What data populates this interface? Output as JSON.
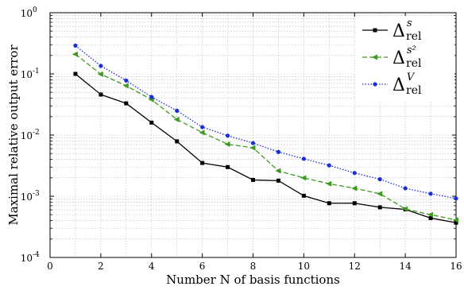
{
  "chart_data": {
    "type": "line",
    "title": "",
    "xlabel": "Number N of basis functions",
    "ylabel": "Maximal relative output error",
    "xlim": [
      0,
      16
    ],
    "ylim": [
      0.0001,
      1
    ],
    "yscale": "log",
    "grid": true,
    "legend_position": "top-right",
    "x_ticks": [
      0,
      2,
      4,
      6,
      8,
      10,
      12,
      14,
      16
    ],
    "y_ticks": [
      {
        "value": 0.0001,
        "base": "10",
        "exp": "-4"
      },
      {
        "value": 0.001,
        "base": "10",
        "exp": "-3"
      },
      {
        "value": 0.01,
        "base": "10",
        "exp": "-2"
      },
      {
        "value": 0.1,
        "base": "10",
        "exp": "-1"
      },
      {
        "value": 1,
        "base": "10",
        "exp": "0"
      }
    ],
    "x": [
      1,
      2,
      3,
      4,
      5,
      6,
      7,
      8,
      9,
      10,
      11,
      12,
      13,
      14,
      15,
      16
    ],
    "series": [
      {
        "name": "Δ^s_rel",
        "legend_sup": "s",
        "legend_sub": "rel",
        "color": "#000000",
        "line_style": "solid",
        "marker": "square",
        "values": [
          0.1,
          0.046,
          0.033,
          0.016,
          0.0079,
          0.0035,
          0.003,
          0.00185,
          0.0018,
          0.00102,
          0.00077,
          0.00077,
          0.00066,
          0.00061,
          0.00044,
          0.00037
        ]
      },
      {
        "name": "Δ^{s²}_rel",
        "legend_sup": "s²",
        "legend_sub": "rel",
        "color": "#3c9a1f",
        "line_style": "dashed",
        "marker": "triangle-left",
        "values": [
          0.21,
          0.099,
          0.064,
          0.038,
          0.018,
          0.011,
          0.0071,
          0.0062,
          0.0026,
          0.002,
          0.0016,
          0.00135,
          0.0011,
          0.00062,
          0.0005,
          0.00041
        ]
      },
      {
        "name": "Δ^V_rel",
        "legend_sup": "V",
        "legend_sub": "rel",
        "color": "#1a2ed8",
        "line_style": "dotted",
        "marker": "dot",
        "values": [
          0.29,
          0.135,
          0.078,
          0.042,
          0.025,
          0.0135,
          0.0098,
          0.0074,
          0.0053,
          0.0041,
          0.0032,
          0.0024,
          0.0019,
          0.00135,
          0.0011,
          0.00092
        ]
      }
    ]
  }
}
